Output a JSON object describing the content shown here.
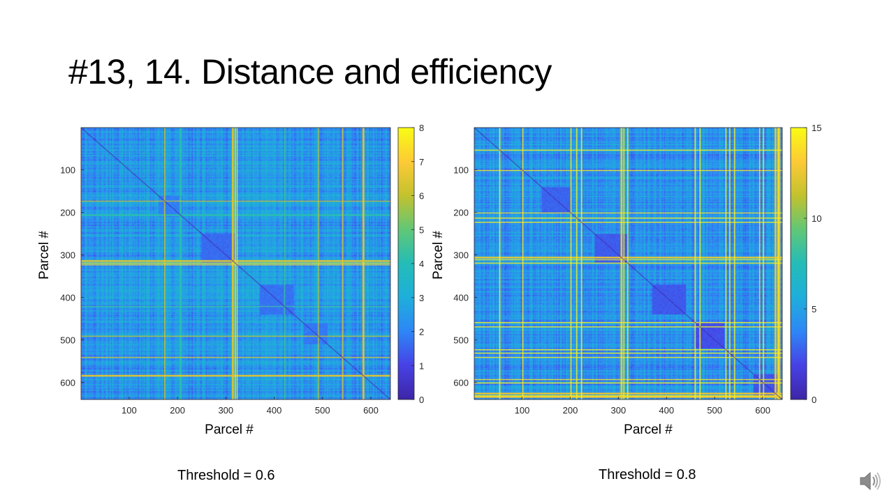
{
  "slide": {
    "title": "#13, 14. Distance and efficiency"
  },
  "colormap": [
    "#3e26a8",
    "#4742e6",
    "#2e87f7",
    "#1eafdb",
    "#24bcb8",
    "#61c778",
    "#c2c22e",
    "#fcca36",
    "#f9fb15"
  ],
  "chart_data": [
    {
      "type": "heatmap",
      "name": "distance-matrix-threshold-0.6",
      "caption": "Threshold = 0.6",
      "xlabel": "Parcel #",
      "ylabel": "Parcel #",
      "n_parcels": 640,
      "x_ticks": [
        "100",
        "200",
        "300",
        "400",
        "500",
        "600"
      ],
      "y_ticks": [
        "100",
        "200",
        "300",
        "400",
        "500",
        "600"
      ],
      "clim": [
        0,
        8
      ],
      "colorbar_ticks": [
        "0",
        "1",
        "2",
        "3",
        "4",
        "5",
        "6",
        "7",
        "8"
      ],
      "baseline_value": 2.4,
      "diagonal_value": 0,
      "high_lines": [
        {
          "parcel": 172,
          "value": 6.2
        },
        {
          "parcel": 205,
          "value": 5.0
        },
        {
          "parcel": 318,
          "value": 7.8
        },
        {
          "parcel": 322,
          "value": 7.4
        },
        {
          "parcel": 420,
          "value": 4.5
        },
        {
          "parcel": 490,
          "value": 6.0
        },
        {
          "parcel": 540,
          "value": 6.5
        },
        {
          "parcel": 583,
          "value": 7.8
        },
        {
          "parcel": 313,
          "value": 7.8
        }
      ],
      "low_blocks": [
        {
          "start": 250,
          "end": 320,
          "value": 1.6
        },
        {
          "start": 370,
          "end": 440,
          "value": 1.7
        },
        {
          "start": 460,
          "end": 510,
          "value": 1.8
        },
        {
          "start": 160,
          "end": 210,
          "value": 1.9
        }
      ]
    },
    {
      "type": "heatmap",
      "name": "distance-matrix-threshold-0.8",
      "caption": "Threshold = 0.8",
      "xlabel": "Parcel #",
      "ylabel": "Parcel #",
      "n_parcels": 640,
      "x_ticks": [
        "100",
        "200",
        "300",
        "400",
        "500",
        "600"
      ],
      "y_ticks": [
        "100",
        "200",
        "300",
        "400",
        "500",
        "600"
      ],
      "clim": [
        0,
        15
      ],
      "colorbar_ticks": [
        "0",
        "5",
        "10",
        "15"
      ],
      "baseline_value": 4.3,
      "diagonal_value": 0,
      "high_lines": [
        {
          "parcel": 52,
          "value": 15
        },
        {
          "parcel": 100,
          "value": 15
        },
        {
          "parcel": 200,
          "value": 15
        },
        {
          "parcel": 212,
          "value": 15
        },
        {
          "parcel": 222,
          "value": 15
        },
        {
          "parcel": 305,
          "value": 15
        },
        {
          "parcel": 310,
          "value": 15
        },
        {
          "parcel": 318,
          "value": 15
        },
        {
          "parcel": 458,
          "value": 15
        },
        {
          "parcel": 468,
          "value": 15
        },
        {
          "parcel": 522,
          "value": 15
        },
        {
          "parcel": 530,
          "value": 15
        },
        {
          "parcel": 540,
          "value": 15
        },
        {
          "parcel": 592,
          "value": 15
        },
        {
          "parcel": 600,
          "value": 15
        },
        {
          "parcel": 625,
          "value": 15
        },
        {
          "parcel": 630,
          "value": 15
        },
        {
          "parcel": 633,
          "value": 15
        }
      ],
      "low_blocks": [
        {
          "start": 250,
          "end": 320,
          "value": 2.6
        },
        {
          "start": 370,
          "end": 440,
          "value": 2.5
        },
        {
          "start": 460,
          "end": 520,
          "value": 2.2
        },
        {
          "start": 140,
          "end": 200,
          "value": 2.8
        },
        {
          "start": 580,
          "end": 630,
          "value": 2.4
        }
      ]
    }
  ],
  "audio": {
    "icon": "speaker-icon"
  }
}
